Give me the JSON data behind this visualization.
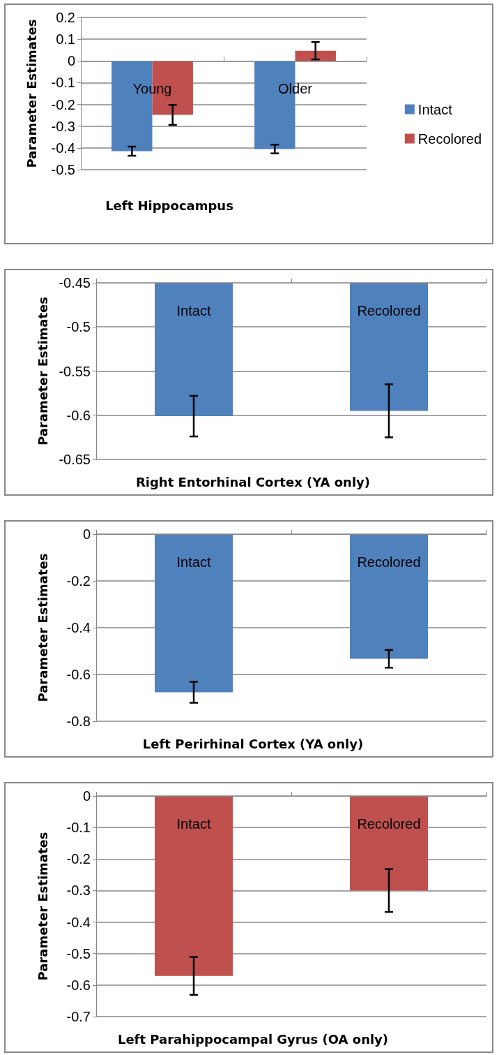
{
  "chart_data": [
    {
      "type": "bar",
      "categories": [
        "Young",
        "Older"
      ],
      "series": [
        {
          "name": "Intact",
          "color": "#4f81bd",
          "values": [
            -0.415,
            -0.405
          ],
          "errors": [
            0.021,
            0.02
          ]
        },
        {
          "name": "Recolored",
          "color": "#c0504d",
          "values": [
            -0.248,
            0.047
          ],
          "errors": [
            0.046,
            0.04
          ]
        }
      ],
      "xlabel": "Left Hippocampus",
      "ylabel": "Parameter Estimates",
      "ylim": [
        -0.5,
        0.2
      ],
      "yticks": [
        -0.5,
        -0.4,
        -0.3,
        -0.2,
        -0.1,
        0,
        0.1,
        0.2
      ],
      "grid": "y",
      "legend": "right"
    },
    {
      "type": "bar",
      "categories": [
        "Intact",
        "Recolored"
      ],
      "series": [
        {
          "color": "#4f81bd",
          "values": [
            -0.601,
            -0.595
          ],
          "errors": [
            0.023,
            0.03
          ]
        }
      ],
      "xlabel": "Right Entorhinal Cortex (YA only)",
      "ylabel": "Parameter Estimates",
      "ylim": [
        -0.65,
        -0.45
      ],
      "yticks": [
        -0.65,
        -0.6,
        -0.55,
        -0.5,
        -0.45
      ],
      "grid": "y"
    },
    {
      "type": "bar",
      "categories": [
        "Intact",
        "Recolored"
      ],
      "series": [
        {
          "color": "#4f81bd",
          "values": [
            -0.676,
            -0.533
          ],
          "errors": [
            0.045,
            0.038
          ]
        }
      ],
      "xlabel": "Left Perirhinal Cortex (YA only)",
      "ylabel": "Parameter Estimates",
      "ylim": [
        -0.8,
        0
      ],
      "yticks": [
        -0.8,
        -0.6,
        -0.4,
        -0.2,
        0
      ],
      "grid": "y"
    },
    {
      "type": "bar",
      "categories": [
        "Intact",
        "Recolored"
      ],
      "series": [
        {
          "color": "#c0504d",
          "values": [
            -0.571,
            -0.3
          ],
          "errors": [
            0.06,
            0.068
          ]
        }
      ],
      "xlabel": "Left Parahippocampal Gyrus (OA only)",
      "ylabel": "Parameter Estimates",
      "ylim": [
        -0.7,
        0
      ],
      "yticks": [
        -0.7,
        -0.6,
        -0.5,
        -0.4,
        -0.3,
        -0.2,
        -0.1,
        0
      ],
      "grid": "y"
    }
  ]
}
